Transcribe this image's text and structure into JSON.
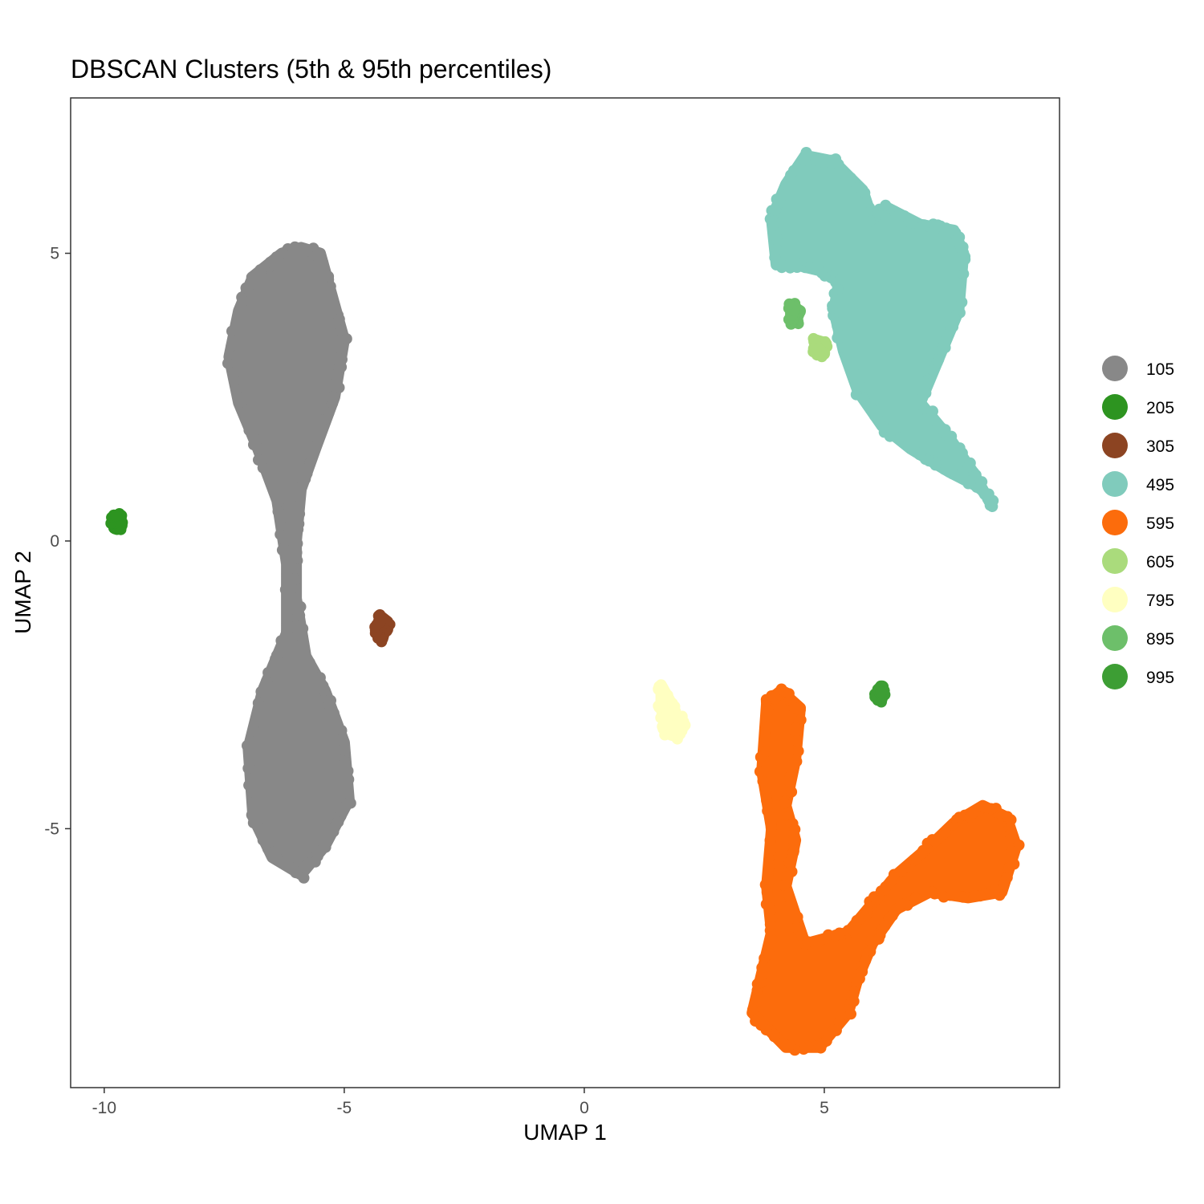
{
  "chart_data": {
    "type": "scatter",
    "title": "DBSCAN Clusters (5th & 95th percentiles)",
    "xlabel": "UMAP 1",
    "ylabel": "UMAP 2",
    "xlim": [
      -10.7,
      9.9
    ],
    "ylim": [
      -9.5,
      7.7
    ],
    "x_ticks": [
      -10,
      -5,
      0,
      5
    ],
    "x_tick_labels": [
      "-10",
      "-5",
      "0",
      "5"
    ],
    "y_ticks": [
      -5,
      0,
      5
    ],
    "y_tick_labels": [
      "-5",
      "0",
      "5"
    ],
    "grid": false,
    "legend_position": "right",
    "series": [
      {
        "name": "105",
        "color": "#888888",
        "shape": [
          [
            -7.4,
            3.2
          ],
          [
            -7.2,
            4.0
          ],
          [
            -6.9,
            4.6
          ],
          [
            -6.3,
            5.0
          ],
          [
            -5.9,
            5.1
          ],
          [
            -5.5,
            5.0
          ],
          [
            -5.3,
            4.4
          ],
          [
            -5.0,
            3.5
          ],
          [
            -5.2,
            2.5
          ],
          [
            -5.6,
            1.6
          ],
          [
            -5.9,
            0.9
          ],
          [
            -6.0,
            0.0
          ],
          [
            -6.0,
            -1.0
          ],
          [
            -5.8,
            -2.0
          ],
          [
            -5.4,
            -2.6
          ],
          [
            -5.0,
            -3.5
          ],
          [
            -4.9,
            -4.5
          ],
          [
            -5.4,
            -5.3
          ],
          [
            -5.9,
            -5.8
          ],
          [
            -6.5,
            -5.5
          ],
          [
            -6.9,
            -4.8
          ],
          [
            -7.0,
            -3.6
          ],
          [
            -6.7,
            -2.6
          ],
          [
            -6.2,
            -1.6
          ],
          [
            -6.2,
            -0.4
          ],
          [
            -6.4,
            0.7
          ],
          [
            -6.8,
            1.6
          ],
          [
            -7.2,
            2.4
          ]
        ]
      },
      {
        "name": "205",
        "color": "#2d9420",
        "shape": [
          [
            -9.8,
            0.45
          ],
          [
            -9.65,
            0.4
          ],
          [
            -9.65,
            0.25
          ],
          [
            -9.8,
            0.25
          ]
        ]
      },
      {
        "name": "305",
        "color": "#8c4422",
        "shape": [
          [
            -4.25,
            -1.3
          ],
          [
            -4.1,
            -1.4
          ],
          [
            -4.2,
            -1.7
          ],
          [
            -4.35,
            -1.6
          ]
        ]
      },
      {
        "name": "495",
        "color": "#80cbbc",
        "shape": [
          [
            4.0,
            4.8
          ],
          [
            3.9,
            5.6
          ],
          [
            4.2,
            6.2
          ],
          [
            4.6,
            6.7
          ],
          [
            5.2,
            6.6
          ],
          [
            5.8,
            6.1
          ],
          [
            6.0,
            5.6
          ],
          [
            6.3,
            5.8
          ],
          [
            7.0,
            5.5
          ],
          [
            7.7,
            5.4
          ],
          [
            7.9,
            5.0
          ],
          [
            7.8,
            4.0
          ],
          [
            7.4,
            3.2
          ],
          [
            7.0,
            2.4
          ],
          [
            7.6,
            1.8
          ],
          [
            8.1,
            1.2
          ],
          [
            8.5,
            0.6
          ],
          [
            8.3,
            0.9
          ],
          [
            7.6,
            1.2
          ],
          [
            6.8,
            1.6
          ],
          [
            6.2,
            2.0
          ],
          [
            5.7,
            2.6
          ],
          [
            5.4,
            3.3
          ],
          [
            5.2,
            4.0
          ],
          [
            5.3,
            4.5
          ],
          [
            4.9,
            4.7
          ],
          [
            4.4,
            4.8
          ]
        ]
      },
      {
        "name": "595",
        "color": "#fc6c0c",
        "shape": [
          [
            3.8,
            -2.8
          ],
          [
            4.1,
            -2.6
          ],
          [
            4.5,
            -2.9
          ],
          [
            4.4,
            -3.8
          ],
          [
            4.2,
            -4.6
          ],
          [
            4.4,
            -5.2
          ],
          [
            4.2,
            -6.0
          ],
          [
            4.6,
            -7.0
          ],
          [
            5.5,
            -6.8
          ],
          [
            6.0,
            -6.3
          ],
          [
            6.5,
            -5.8
          ],
          [
            7.2,
            -5.3
          ],
          [
            7.7,
            -4.9
          ],
          [
            8.3,
            -4.6
          ],
          [
            8.8,
            -4.8
          ],
          [
            9.0,
            -5.3
          ],
          [
            8.7,
            -6.1
          ],
          [
            8.0,
            -6.2
          ],
          [
            7.2,
            -6.1
          ],
          [
            6.5,
            -6.4
          ],
          [
            6.0,
            -7.0
          ],
          [
            5.7,
            -7.6
          ],
          [
            5.5,
            -8.2
          ],
          [
            4.9,
            -8.8
          ],
          [
            4.2,
            -8.8
          ],
          [
            3.5,
            -8.2
          ],
          [
            3.7,
            -7.5
          ],
          [
            3.9,
            -6.8
          ],
          [
            3.8,
            -6.0
          ],
          [
            3.9,
            -5.0
          ],
          [
            3.7,
            -4.0
          ]
        ]
      },
      {
        "name": "605",
        "color": "#aadb7c",
        "shape": [
          [
            4.8,
            3.5
          ],
          [
            5.0,
            3.45
          ],
          [
            5.0,
            3.25
          ],
          [
            4.8,
            3.3
          ]
        ]
      },
      {
        "name": "795",
        "color": "#ffffc1",
        "shape": [
          [
            1.6,
            -2.5
          ],
          [
            1.8,
            -2.8
          ],
          [
            1.9,
            -3.0
          ],
          [
            2.1,
            -3.2
          ],
          [
            1.9,
            -3.4
          ],
          [
            1.7,
            -3.3
          ],
          [
            1.6,
            -2.9
          ]
        ]
      },
      {
        "name": "895",
        "color": "#6dbf6a",
        "shape": [
          [
            4.3,
            4.1
          ],
          [
            4.5,
            4.0
          ],
          [
            4.4,
            3.8
          ],
          [
            4.3,
            3.85
          ]
        ]
      },
      {
        "name": "995",
        "color": "#3d9e34",
        "shape": [
          [
            6.15,
            -2.55
          ],
          [
            6.25,
            -2.6
          ],
          [
            6.2,
            -2.75
          ],
          [
            6.1,
            -2.7
          ]
        ]
      }
    ]
  }
}
